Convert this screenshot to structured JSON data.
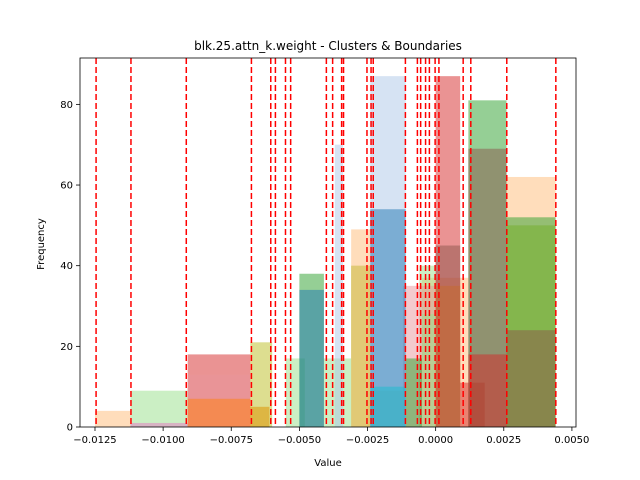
{
  "chart_data": {
    "type": "histogram",
    "title": "blk.25.attn_k.weight - Clusters & Boundaries",
    "xlabel": "Value",
    "ylabel": "Frequency",
    "xlim": [
      -0.01305,
      0.00515
    ],
    "ylim": [
      0,
      91.5
    ],
    "xticks": [
      {
        "value": -0.0125,
        "label": "−0.0125"
      },
      {
        "value": -0.01,
        "label": "−0.0100"
      },
      {
        "value": -0.0075,
        "label": "−0.0075"
      },
      {
        "value": -0.005,
        "label": "−0.0050"
      },
      {
        "value": -0.0025,
        "label": "−0.0025"
      },
      {
        "value": 0.0,
        "label": "0.0000"
      },
      {
        "value": 0.0025,
        "label": "0.0025"
      },
      {
        "value": 0.005,
        "label": "0.0050"
      }
    ],
    "yticks": [
      {
        "value": 0,
        "label": "0"
      },
      {
        "value": 20,
        "label": "20"
      },
      {
        "value": 40,
        "label": "40"
      },
      {
        "value": 60,
        "label": "60"
      },
      {
        "value": 80,
        "label": "80"
      }
    ],
    "grid": false,
    "legend": "none",
    "series": [
      {
        "color": "#ffbb78",
        "bars": [
          {
            "x0": -0.0125,
            "x1": -0.0112,
            "y": 4
          },
          {
            "x0": -0.0068,
            "x1": -0.0061,
            "y": 5
          },
          {
            "x0": -0.0025,
            "x1": -0.0012,
            "y": 9
          },
          {
            "x0": -0.0005,
            "x1": 0.0012,
            "y": 37
          },
          {
            "x0": 0.0026,
            "x1": 0.0044,
            "y": 62
          }
        ]
      },
      {
        "color": "#98df8a",
        "bars": [
          {
            "x0": -0.0112,
            "x1": -0.0091,
            "y": 9
          },
          {
            "x0": -0.0055,
            "x1": -0.0048,
            "y": 17
          },
          {
            "x0": -0.0041,
            "x1": -0.0031,
            "y": 17
          },
          {
            "x0": -0.0031,
            "x1": -0.0024,
            "y": 40
          },
          {
            "x0": -0.0006,
            "x1": 0.0,
            "y": 40
          }
        ]
      },
      {
        "color": "#e377c2",
        "bars": [
          {
            "x0": -0.0112,
            "x1": -0.0091,
            "y": 1
          }
        ]
      },
      {
        "color": "#d62728",
        "bars": [
          {
            "x0": -0.0091,
            "x1": -0.0068,
            "y": 18
          },
          {
            "x0": 0.0,
            "x1": 0.0009,
            "y": 87
          },
          {
            "x0": 0.0009,
            "x1": 0.0018,
            "y": 11
          }
        ]
      },
      {
        "color": "#e7969c",
        "bars": [
          {
            "x0": -0.0091,
            "x1": -0.0068,
            "y": 13
          },
          {
            "x0": -0.0012,
            "x1": 0.0,
            "y": 35
          }
        ]
      },
      {
        "color": "#ff7f0e",
        "bars": [
          {
            "x0": -0.0091,
            "x1": -0.0068,
            "y": 7
          },
          {
            "x0": -0.0068,
            "x1": -0.0061,
            "y": 5
          },
          {
            "x0": 0.0,
            "x1": 0.0009,
            "y": 35
          }
        ]
      },
      {
        "color": "#bcbd22",
        "bars": [
          {
            "x0": -0.0068,
            "x1": -0.006,
            "y": 21
          },
          {
            "x0": -0.0031,
            "x1": -0.0024,
            "y": 40
          },
          {
            "x0": 0.0026,
            "x1": 0.0044,
            "y": 50
          }
        ]
      },
      {
        "color": "#aec7e8",
        "bars": [
          {
            "x0": -0.0037,
            "x1": -0.0034,
            "y": 70
          },
          {
            "x0": -0.0024,
            "x1": -0.0011,
            "y": 87
          }
        ]
      },
      {
        "color": "#ffbb78",
        "bars": [
          {
            "x0": -0.0031,
            "x1": -0.0024,
            "y": 49
          }
        ]
      },
      {
        "color": "#2ca02c",
        "bars": [
          {
            "x0": -0.005,
            "x1": -0.0041,
            "y": 38
          },
          {
            "x0": 0.0012,
            "x1": 0.0026,
            "y": 81
          },
          {
            "x0": 0.0026,
            "x1": 0.0044,
            "y": 52
          }
        ]
      },
      {
        "color": "#1f77b4",
        "bars": [
          {
            "x0": -0.005,
            "x1": -0.0041,
            "y": 34
          },
          {
            "x0": -0.0024,
            "x1": -0.0011,
            "y": 54
          }
        ]
      },
      {
        "color": "#8c564b",
        "bars": [
          {
            "x0": 0.0,
            "x1": 0.0009,
            "y": 45
          },
          {
            "x0": 0.0012,
            "x1": 0.0026,
            "y": 69
          },
          {
            "x0": 0.0026,
            "x1": 0.0044,
            "y": 24
          }
        ]
      },
      {
        "color": "#2ca02c",
        "bars": [
          {
            "x0": -0.0011,
            "x1": -0.0005,
            "y": 17
          }
        ]
      },
      {
        "color": "#98df8a",
        "bars": [
          {
            "x0": -0.0005,
            "x1": 0.0,
            "y": 28
          }
        ]
      },
      {
        "color": "#17becf",
        "bars": [
          {
            "x0": -0.0024,
            "x1": -0.0011,
            "y": 10
          }
        ]
      },
      {
        "color": "#d62728",
        "bars": [
          {
            "x0": 0.0012,
            "x1": 0.0026,
            "y": 18
          }
        ]
      }
    ],
    "boundaries": [
      -0.01246,
      -0.01118,
      -0.00915,
      -0.00676,
      -0.00605,
      -0.00588,
      -0.00551,
      -0.00532,
      -0.00401,
      -0.00378,
      -0.00345,
      -0.00338,
      -0.00252,
      -0.00237,
      -0.00229,
      -0.00111,
      -0.00067,
      -0.00055,
      -0.00037,
      -0.00023,
      -2e-05,
      0.00012,
      0.00101,
      0.00129,
      0.00261,
      0.00441
    ],
    "boundary_color": "#ff0000"
  }
}
